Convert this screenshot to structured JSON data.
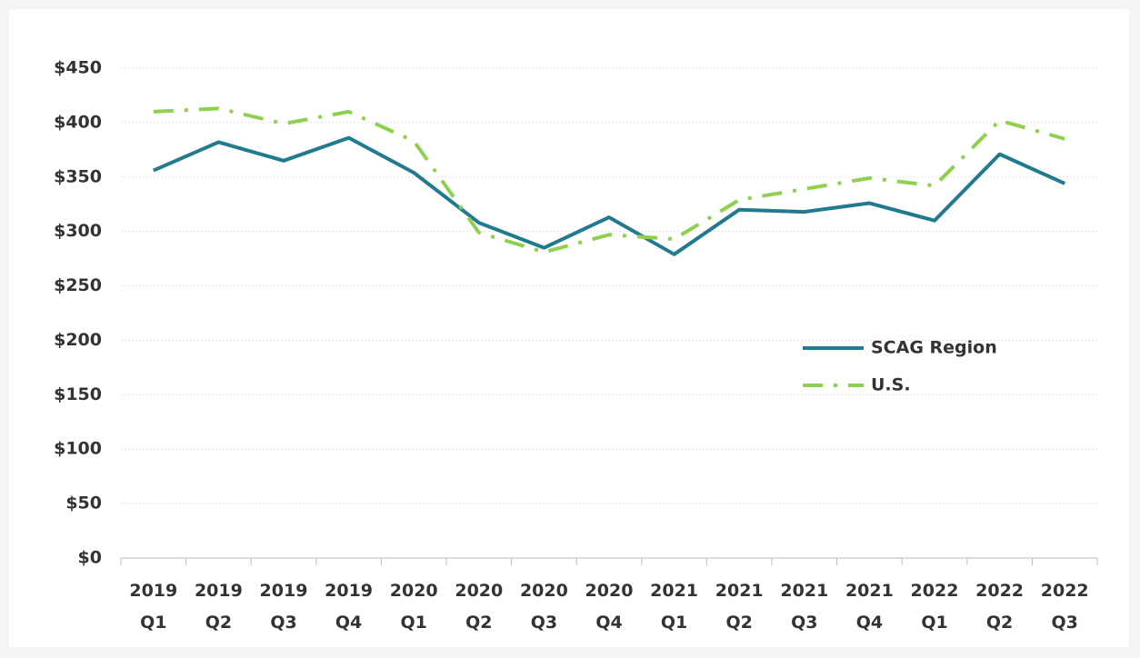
{
  "chart_data": {
    "type": "line",
    "categories": [
      "2019 Q1",
      "2019 Q2",
      "2019 Q3",
      "2019 Q4",
      "2020 Q1",
      "2020 Q2",
      "2020 Q3",
      "2020 Q4",
      "2021 Q1",
      "2021 Q2",
      "2021 Q3",
      "2021 Q4",
      "2022 Q1",
      "2022 Q2",
      "2022 Q3"
    ],
    "series": [
      {
        "name": "SCAG Region",
        "color": "#217a8d",
        "values": [
          356,
          382,
          365,
          386,
          354,
          308,
          285,
          313,
          279,
          320,
          318,
          326,
          310,
          371,
          344
        ]
      },
      {
        "name": "U.S.",
        "color": "#8fd14f",
        "values": [
          410,
          413,
          399,
          410,
          383,
          299,
          281,
          297,
          293,
          329,
          339,
          349,
          342,
          402,
          385
        ]
      }
    ],
    "ylim": [
      0,
      450
    ],
    "yticks": [
      {
        "value": 0,
        "label": "$0"
      },
      {
        "value": 50,
        "label": "$50"
      },
      {
        "value": 100,
        "label": "$100"
      },
      {
        "value": 150,
        "label": "$150"
      },
      {
        "value": 200,
        "label": "$200"
      },
      {
        "value": 250,
        "label": "$250"
      },
      {
        "value": 300,
        "label": "$300"
      },
      {
        "value": 350,
        "label": "$350"
      },
      {
        "value": 400,
        "label": "$400"
      },
      {
        "value": 450,
        "label": "$450"
      }
    ],
    "grid": true,
    "legend": "right"
  }
}
